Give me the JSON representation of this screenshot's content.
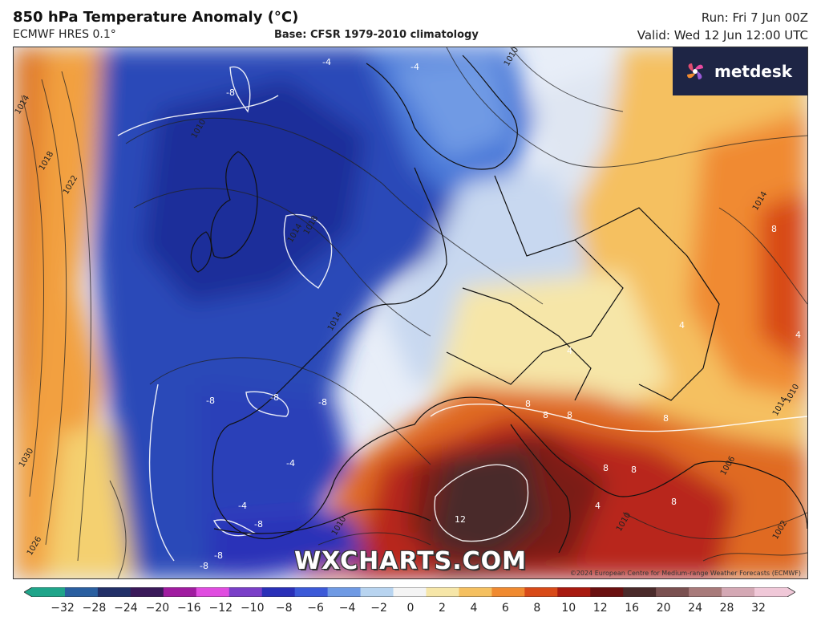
{
  "header": {
    "title": "850 hPa Temperature Anomaly (°C)",
    "model": "ECMWF HRES 0.1°",
    "base": "Base: CFSR 1979-2010 climatology",
    "run": "Run: Fri 7 Jun 00Z",
    "valid": "Valid: Wed 12 Jun 12:00 UTC"
  },
  "logo": {
    "text": "metdesk",
    "icon": "pinwheel-icon"
  },
  "watermark": "WXCHARTS.COM",
  "copyright": "©2024 European Centre for Medium-range Weather Forecasts (ECMWF)",
  "map_labels": {
    "isobars": [
      "1010",
      "1014",
      "1018",
      "1022",
      "1010",
      "1014",
      "1018",
      "1014",
      "1026",
      "1030",
      "1010",
      "1010",
      "1014",
      "1014",
      "1010",
      "1006",
      "1002"
    ],
    "anomalies": [
      "-8",
      "-4",
      "-4",
      "-8",
      "-8",
      "-8",
      "-4",
      "-4",
      "-8",
      "-8",
      "-8",
      "4",
      "4",
      "8",
      "4",
      "8",
      "8",
      "8",
      "8",
      "8",
      "12",
      "8",
      "8",
      "4"
    ]
  },
  "colorbar": {
    "labels": [
      "−32",
      "−28",
      "−24",
      "−20",
      "−16",
      "−12",
      "−10",
      "−8",
      "−6",
      "−4",
      "−2",
      "0",
      "2",
      "4",
      "6",
      "8",
      "10",
      "12",
      "16",
      "20",
      "24",
      "28",
      "32"
    ],
    "colors": [
      "#1fa58a",
      "#2a5fa0",
      "#223068",
      "#3a1a5a",
      "#a01ca0",
      "#e04ce0",
      "#7a3fc8",
      "#2a30b8",
      "#3c5ad8",
      "#6f9ae4",
      "#b8d4f0",
      "#f4f4f4",
      "#f6e6a8",
      "#f5c060",
      "#f08a30",
      "#d84a18",
      "#a81a10",
      "#6a1010",
      "#4a2a2a",
      "#7a5050",
      "#a87a7a",
      "#d4a8b4",
      "#f0c8d8"
    ]
  }
}
